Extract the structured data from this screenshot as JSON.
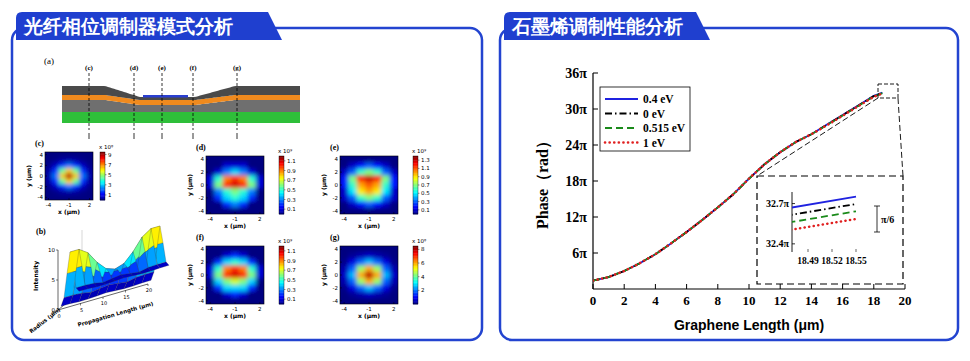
{
  "panels": [
    {
      "title": "光纤相位调制器模式分析"
    },
    {
      "title": "石墨烯调制性能分析"
    }
  ],
  "schematic": {
    "title": "(a)",
    "cuts": [
      "(c)",
      "(d)",
      "(e)",
      "(f)",
      "(g)"
    ]
  },
  "chart_data": [
    {
      "type": "heatmap",
      "title": "(c)",
      "xlabel": "x (μm)",
      "ylabel": "y (μm)",
      "x": [
        -4,
        -3,
        -2,
        -1,
        0,
        1,
        2
      ],
      "y": [
        4,
        3,
        2,
        1,
        0,
        -1,
        -2,
        -3,
        -4
      ],
      "xlim": [
        -4.5,
        2.5
      ],
      "ylim": [
        -4.5,
        4.5
      ],
      "xticks": [
        -4,
        -1,
        2
      ],
      "yticks": [
        -4,
        -2,
        0,
        2,
        4
      ],
      "values": [
        [
          0,
          0,
          0,
          0,
          0,
          0,
          0
        ],
        [
          0,
          0.1,
          0.3,
          0.4,
          0.3,
          0.1,
          0
        ],
        [
          0.1,
          0.6,
          1.6,
          2.3,
          1.6,
          0.6,
          0.1
        ],
        [
          0.3,
          1.6,
          4.5,
          6.4,
          4.5,
          1.6,
          0.3
        ],
        [
          0.4,
          2.3,
          6.4,
          9,
          6.4,
          2.3,
          0.4
        ],
        [
          0.3,
          1.6,
          4.5,
          6.4,
          4.5,
          1.6,
          0.3
        ],
        [
          0.1,
          0.6,
          1.6,
          2.3,
          1.6,
          0.6,
          0.1
        ],
        [
          0,
          0.1,
          0.3,
          0.4,
          0.3,
          0.1,
          0
        ],
        [
          0,
          0,
          0,
          0,
          0,
          0,
          0
        ]
      ],
      "colorbar": {
        "range": [
          0,
          9.5
        ],
        "ticks": [
          1,
          3,
          5,
          7,
          9
        ],
        "label": "x 10⁸"
      }
    },
    {
      "type": "surface",
      "title": "(b)",
      "xlabel": "Propagation Length (μm)",
      "ylabel": "Radius (μm)",
      "zlabel": "Intensity",
      "x": [
        0,
        2,
        4,
        6,
        8,
        10,
        12,
        14,
        16,
        18,
        20
      ],
      "y": [
        -3,
        -2,
        -1,
        0,
        1,
        2,
        3
      ],
      "xlim": [
        0,
        20
      ],
      "ylim": [
        -4,
        4
      ],
      "zlim": [
        0,
        10
      ],
      "xticks": [
        0,
        5,
        10,
        15,
        20
      ],
      "yticks": [
        -4,
        0,
        4
      ],
      "zticks": [
        0,
        5,
        10
      ],
      "values": [
        [
          0.2,
          1.2,
          4.8,
          8,
          4.8,
          1.2,
          0.2
        ],
        [
          0.2,
          1.2,
          4.8,
          8,
          4.8,
          1.2,
          0.2
        ],
        [
          0.1,
          1.1,
          4.2,
          7,
          4.2,
          1.1,
          0.1
        ],
        [
          0.1,
          0.8,
          3,
          5,
          3,
          0.8,
          0.1
        ],
        [
          0.2,
          1,
          2.5,
          3.5,
          2.5,
          1,
          0.2
        ],
        [
          0.3,
          1.2,
          2.4,
          3,
          2.4,
          1.2,
          0.3
        ],
        [
          0.2,
          1,
          2.5,
          3.5,
          2.5,
          1,
          0.2
        ],
        [
          0.1,
          0.8,
          3,
          5,
          3,
          0.8,
          0.1
        ],
        [
          0.1,
          1.1,
          4.2,
          7,
          4.2,
          1.1,
          0.1
        ],
        [
          0.2,
          1.2,
          4.8,
          8,
          4.8,
          1.2,
          0.2
        ],
        [
          0.2,
          1.2,
          4.8,
          8,
          4.8,
          1.2,
          0.2
        ]
      ]
    },
    {
      "type": "heatmap",
      "title": "(d)",
      "xlabel": "x (μm)",
      "ylabel": "y (μm)",
      "x": [
        -4,
        -3,
        -2,
        -1,
        0,
        1,
        2
      ],
      "y": [
        4,
        3,
        2,
        1,
        0,
        -1,
        -2,
        -3,
        -4
      ],
      "xlim": [
        -4.5,
        2.5
      ],
      "ylim": [
        -4.5,
        4.5
      ],
      "xticks": [
        -4,
        -1,
        2
      ],
      "yticks": [
        -4,
        -2,
        0,
        2,
        4
      ],
      "values": [
        [
          0,
          0,
          0,
          0,
          0,
          0,
          0
        ],
        [
          0,
          0,
          0.1,
          0.1,
          0.1,
          0,
          0
        ],
        [
          0,
          0.1,
          0.3,
          0.4,
          0.3,
          0.1,
          0
        ],
        [
          0.1,
          0.5,
          0.9,
          1.0,
          0.9,
          0.5,
          0.1
        ],
        [
          0.1,
          0.6,
          1.0,
          1.1,
          1.0,
          0.6,
          0.1
        ],
        [
          0,
          0.3,
          0.5,
          0.6,
          0.5,
          0.3,
          0
        ],
        [
          0,
          0.2,
          0.4,
          0.5,
          0.4,
          0.2,
          0
        ],
        [
          0,
          0,
          0.2,
          0.3,
          0.2,
          0,
          0
        ],
        [
          0,
          0,
          0,
          0,
          0,
          0,
          0
        ]
      ],
      "colorbar": {
        "range": [
          0,
          1.2
        ],
        "ticks": [
          0.1,
          0.3,
          0.5,
          0.7,
          0.9,
          1.1
        ],
        "label": "x 10⁹"
      }
    },
    {
      "type": "heatmap",
      "title": "(e)",
      "xlabel": "x (μm)",
      "ylabel": "y (μm)",
      "x": [
        -4,
        -3,
        -2,
        -1,
        0,
        1,
        2
      ],
      "y": [
        4,
        3,
        2,
        1,
        0,
        -1,
        -2,
        -3,
        -4
      ],
      "xlim": [
        -4.5,
        2.5
      ],
      "ylim": [
        -4.5,
        4.5
      ],
      "xticks": [
        -4,
        -1,
        2
      ],
      "yticks": [
        -4,
        -2,
        0,
        2,
        4
      ],
      "values": [
        [
          0,
          0,
          0,
          0,
          0,
          0,
          0
        ],
        [
          0,
          0.1,
          0.2,
          0.3,
          0.2,
          0.1,
          0
        ],
        [
          0.1,
          0.3,
          0.6,
          0.7,
          0.6,
          0.3,
          0.1
        ],
        [
          0.2,
          0.7,
          1.2,
          1.3,
          1.2,
          0.7,
          0.2
        ],
        [
          0.2,
          0.6,
          1.0,
          1.1,
          1.0,
          0.6,
          0.2
        ],
        [
          0.1,
          0.5,
          0.9,
          1.0,
          0.9,
          0.5,
          0.1
        ],
        [
          0.1,
          0.3,
          0.6,
          0.7,
          0.6,
          0.3,
          0.1
        ],
        [
          0,
          0.1,
          0.2,
          0.3,
          0.2,
          0.1,
          0
        ],
        [
          0,
          0,
          0,
          0,
          0,
          0,
          0
        ]
      ],
      "colorbar": {
        "range": [
          0,
          1.4
        ],
        "ticks": [
          0.1,
          0.3,
          0.5,
          0.7,
          0.9,
          1.1,
          1.3
        ],
        "label": "x 10⁹"
      }
    },
    {
      "type": "heatmap",
      "title": "(f)",
      "xlabel": "x (μm)",
      "ylabel": "y (μm)",
      "x": [
        -4,
        -3,
        -2,
        -1,
        0,
        1,
        2
      ],
      "y": [
        4,
        3,
        2,
        1,
        0,
        -1,
        -2,
        -3,
        -4
      ],
      "xlim": [
        -4.5,
        2.5
      ],
      "ylim": [
        -4.5,
        4.5
      ],
      "xticks": [
        -4,
        -1,
        2
      ],
      "yticks": [
        -4,
        -2,
        0,
        2,
        4
      ],
      "values": [
        [
          0,
          0,
          0,
          0,
          0,
          0,
          0
        ],
        [
          0,
          0,
          0.1,
          0.2,
          0.1,
          0,
          0
        ],
        [
          0,
          0.2,
          0.4,
          0.5,
          0.4,
          0.2,
          0
        ],
        [
          0.1,
          0.5,
          0.9,
          1.0,
          0.9,
          0.5,
          0.1
        ],
        [
          0.1,
          0.6,
          1.0,
          1.1,
          1.0,
          0.6,
          0.1
        ],
        [
          0,
          0.4,
          0.6,
          0.7,
          0.6,
          0.4,
          0
        ],
        [
          0,
          0.2,
          0.4,
          0.4,
          0.4,
          0.2,
          0
        ],
        [
          0,
          0,
          0.1,
          0.2,
          0.1,
          0,
          0
        ],
        [
          0,
          0,
          0,
          0,
          0,
          0,
          0
        ]
      ],
      "colorbar": {
        "range": [
          0,
          1.2
        ],
        "ticks": [
          0.1,
          0.3,
          0.5,
          0.7,
          0.9,
          1.1
        ],
        "label": "x 10⁹"
      }
    },
    {
      "type": "heatmap",
      "title": "(g)",
      "xlabel": "x (μm)",
      "ylabel": "y (μm)",
      "x": [
        -4,
        -3,
        -2,
        -1,
        0,
        1,
        2
      ],
      "y": [
        4,
        3,
        2,
        1,
        0,
        -1,
        -2,
        -3,
        -4
      ],
      "xlim": [
        -4.5,
        2.5
      ],
      "ylim": [
        -4.5,
        4.5
      ],
      "xticks": [
        -4,
        -1,
        2
      ],
      "yticks": [
        -4,
        -2,
        0,
        2,
        4
      ],
      "values": [
        [
          0,
          0,
          0,
          0,
          0,
          0,
          0
        ],
        [
          0,
          0.2,
          0.4,
          0.6,
          0.4,
          0.2,
          0
        ],
        [
          0.1,
          0.8,
          1.9,
          2.6,
          1.9,
          0.8,
          0.1
        ],
        [
          0.4,
          1.9,
          4.5,
          6.0,
          4.5,
          1.9,
          0.4
        ],
        [
          0.6,
          2.6,
          6.0,
          8,
          6.0,
          2.6,
          0.6
        ],
        [
          0.4,
          1.9,
          4.5,
          6.0,
          4.5,
          1.9,
          0.4
        ],
        [
          0.1,
          0.8,
          1.9,
          2.6,
          1.9,
          0.8,
          0.1
        ],
        [
          0,
          0.2,
          0.4,
          0.6,
          0.4,
          0.2,
          0
        ],
        [
          0,
          0,
          0,
          0,
          0,
          0,
          0
        ]
      ],
      "colorbar": {
        "range": [
          0,
          8.5
        ],
        "ticks": [
          2,
          4,
          6,
          8
        ],
        "label": "x 10⁸"
      }
    },
    {
      "type": "line",
      "xlabel": "Graphene Length (μm)",
      "ylabel": "Phase（rad）",
      "legend": "upper left",
      "grid": false,
      "x": [
        0,
        1,
        2,
        3,
        4,
        5,
        6,
        7,
        8,
        9,
        10,
        11,
        12,
        13,
        14,
        15,
        16,
        17,
        18,
        18.55
      ],
      "xlim": [
        0,
        20
      ],
      "xticks": [
        0,
        2,
        4,
        6,
        8,
        10,
        12,
        14,
        16,
        18,
        20
      ],
      "ylim": [
        0,
        113.1
      ],
      "yticks": [
        {
          "value": 18.85,
          "label": "6π"
        },
        {
          "value": 37.7,
          "label": "12π"
        },
        {
          "value": 56.55,
          "label": "18π"
        },
        {
          "value": 75.4,
          "label": "24π"
        },
        {
          "value": 94.25,
          "label": "30π"
        },
        {
          "value": 113.1,
          "label": "36π"
        }
      ],
      "series": [
        {
          "name": "0.4 eV",
          "color": "#1f22e0",
          "line_style": "solid",
          "values": [
            4.4,
            6.28,
            9.42,
            13.51,
            18.22,
            23.88,
            29.85,
            36.13,
            42.73,
            49.64,
            57.81,
            65.35,
            71.63,
            76.97,
            81.05,
            86.08,
            91.11,
            96.13,
            101.16,
            102.89
          ]
        },
        {
          "name": "0 eV",
          "color": "#000000",
          "line_style": "dashdot",
          "values": [
            4.4,
            6.28,
            9.42,
            13.51,
            18.22,
            23.88,
            29.85,
            36.13,
            42.73,
            49.64,
            57.81,
            65.35,
            71.63,
            76.97,
            81.05,
            85.98,
            90.99,
            95.99,
            101.0,
            102.72
          ]
        },
        {
          "name": "0.515 eV",
          "color": "#1a8a1a",
          "line_style": "dashed",
          "values": [
            4.4,
            6.28,
            9.42,
            13.51,
            18.22,
            23.88,
            29.85,
            36.13,
            42.73,
            49.64,
            57.81,
            65.35,
            71.63,
            76.97,
            81.05,
            85.88,
            90.87,
            95.85,
            100.84,
            102.55
          ]
        },
        {
          "name": "1 eV",
          "color": "#e02020",
          "line_style": "dotted",
          "values": [
            4.4,
            6.28,
            9.42,
            13.51,
            18.22,
            23.88,
            29.85,
            36.13,
            42.73,
            49.64,
            57.81,
            65.35,
            71.63,
            76.97,
            81.05,
            85.78,
            90.75,
            95.71,
            100.68,
            102.37
          ]
        }
      ],
      "inset": {
        "xlim": [
          18.47,
          18.57
        ],
        "ylim": [
          101.6,
          103.0
        ],
        "xticks": [
          18.49,
          18.52,
          18.55
        ],
        "yticks": [
          {
            "value": 102.73,
            "label": "32.7π"
          },
          {
            "value": 101.79,
            "label": "32.4π"
          }
        ],
        "annotation": "π/6"
      }
    }
  ]
}
